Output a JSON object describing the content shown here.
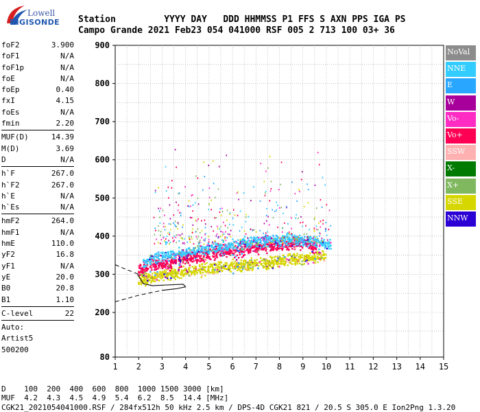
{
  "logo": {
    "line1": "Lowell",
    "line2": "DIGISONDE"
  },
  "header": {
    "labels": [
      "Station",
      "YYYY",
      "DAY",
      "DDD",
      "HHMMSS",
      "P1",
      "FFS",
      "S",
      "AXN",
      "PPS",
      "IGA",
      "PS"
    ],
    "values": [
      "Campo Grande",
      "2021",
      "Feb23",
      "054",
      "041000",
      "RSF",
      "005",
      "2",
      "713",
      "100",
      "03+",
      "36"
    ]
  },
  "params": [
    {
      "label": "foF2",
      "value": "3.900"
    },
    {
      "label": "foF1",
      "value": "N/A"
    },
    {
      "label": "foF1p",
      "value": "N/A"
    },
    {
      "label": "foE",
      "value": "N/A"
    },
    {
      "label": "foEp",
      "value": "0.40"
    },
    {
      "label": "fxI",
      "value": "4.15"
    },
    {
      "label": "foEs",
      "value": "N/A"
    },
    {
      "label": "fmin",
      "value": "2.20"
    },
    {
      "sep": true
    },
    {
      "label": "MUF(D)",
      "value": "14.39"
    },
    {
      "label": "M(D)",
      "value": "3.69"
    },
    {
      "label": "D",
      "value": "N/A"
    },
    {
      "sep": true
    },
    {
      "label": "h`F",
      "value": "267.0"
    },
    {
      "label": "h`F2",
      "value": "267.0"
    },
    {
      "label": "h`E",
      "value": "N/A"
    },
    {
      "label": "h`Es",
      "value": "N/A"
    },
    {
      "sep": true
    },
    {
      "label": "hmF2",
      "value": "264.0"
    },
    {
      "label": "hmF1",
      "value": "N/A"
    },
    {
      "label": "hmE",
      "value": "110.0"
    },
    {
      "label": "yF2",
      "value": "16.8"
    },
    {
      "label": "yF1",
      "value": "N/A"
    },
    {
      "label": "yE",
      "value": "20.0"
    },
    {
      "label": "B0",
      "value": "20.8"
    },
    {
      "label": "B1",
      "value": "1.10"
    },
    {
      "sep": true
    },
    {
      "label": "C-level",
      "value": "22"
    },
    {
      "sep": true
    },
    {
      "text": "Auto:"
    },
    {
      "text": "Artist5"
    },
    {
      "text": "500200"
    }
  ],
  "legend": [
    {
      "label": "NoVal",
      "color": "#8c8c8c"
    },
    {
      "label": "NNE",
      "color": "#33ccff"
    },
    {
      "label": "E",
      "color": "#29a6ff"
    },
    {
      "label": "W",
      "color": "#a8009a"
    },
    {
      "label": "Vo-",
      "color": "#ff2cc4"
    },
    {
      "label": "Vo+",
      "color": "#ff0054"
    },
    {
      "label": "SSW",
      "color": "#ffb0b0"
    },
    {
      "label": "X-",
      "color": "#007a00"
    },
    {
      "label": "X+",
      "color": "#80b860"
    },
    {
      "label": "SSE",
      "color": "#d6d600"
    },
    {
      "label": "NNW",
      "color": "#2a00d4"
    }
  ],
  "footer": {
    "d_label": "D",
    "d_values": [
      "100",
      "200",
      "400",
      "600",
      "800",
      "1000",
      "1500",
      "3000",
      "[km]"
    ],
    "muf_label": "MUF",
    "muf_values": [
      "4.2",
      "4.3",
      "4.5",
      "4.9",
      "5.4",
      "6.2",
      "8.5",
      "14.4",
      "[MHz]"
    ],
    "file_line": "CGK21_2021054041000.RSF / 284fx512h 50 kHz 2.5 km / DPS-4D CGK21 821 / 20.5 S 305.0 E Ion2Png 1.3.20"
  },
  "chart_data": {
    "type": "scatter",
    "title": "",
    "xlabel": "",
    "ylabel": "",
    "xlim": [
      1,
      15
    ],
    "ylim": [
      80,
      900
    ],
    "x_ticks": [
      1,
      2,
      3,
      4,
      5,
      6,
      7,
      8,
      9,
      10,
      11,
      12,
      13,
      14,
      15
    ],
    "y_ticks": [
      80,
      200,
      300,
      400,
      500,
      600,
      700,
      800,
      900
    ],
    "grid": true,
    "legend_position": "right",
    "series": [
      {
        "name": "NNE",
        "color": "#33ccff",
        "points": [
          [
            2.2,
            330
          ],
          [
            2.6,
            340
          ],
          [
            3.0,
            345
          ],
          [
            3.4,
            350
          ],
          [
            3.8,
            355
          ],
          [
            4.2,
            360
          ],
          [
            4.6,
            365
          ],
          [
            5.0,
            368
          ],
          [
            5.4,
            372
          ],
          [
            5.8,
            375
          ],
          [
            6.2,
            378
          ],
          [
            6.6,
            382
          ],
          [
            7.0,
            385
          ],
          [
            7.4,
            388
          ],
          [
            7.8,
            390
          ],
          [
            8.2,
            390
          ],
          [
            8.6,
            392
          ],
          [
            9.0,
            388
          ],
          [
            9.4,
            385
          ],
          [
            9.8,
            380
          ],
          [
            10.2,
            378
          ]
        ]
      },
      {
        "name": "Vo+",
        "color": "#ff0054",
        "points": [
          [
            2.0,
            310
          ],
          [
            2.4,
            320
          ],
          [
            2.8,
            325
          ],
          [
            3.2,
            330
          ],
          [
            3.6,
            335
          ],
          [
            4.0,
            340
          ],
          [
            4.4,
            345
          ],
          [
            4.8,
            350
          ],
          [
            5.2,
            355
          ],
          [
            5.6,
            360
          ],
          [
            6.0,
            362
          ],
          [
            6.4,
            365
          ],
          [
            6.8,
            368
          ],
          [
            7.2,
            372
          ],
          [
            7.6,
            375
          ],
          [
            8.0,
            378
          ],
          [
            8.4,
            380
          ],
          [
            8.8,
            382
          ],
          [
            9.2,
            378
          ],
          [
            9.6,
            372
          ]
        ]
      },
      {
        "name": "SSE",
        "color": "#d6d600",
        "points": [
          [
            2.0,
            285
          ],
          [
            2.4,
            290
          ],
          [
            2.8,
            295
          ],
          [
            3.2,
            298
          ],
          [
            3.6,
            302
          ],
          [
            4.0,
            305
          ],
          [
            4.4,
            308
          ],
          [
            4.8,
            312
          ],
          [
            5.2,
            315
          ],
          [
            5.6,
            318
          ],
          [
            6.0,
            320
          ],
          [
            6.4,
            322
          ],
          [
            6.8,
            325
          ],
          [
            7.2,
            328
          ],
          [
            7.6,
            330
          ],
          [
            8.0,
            335
          ],
          [
            8.4,
            338
          ],
          [
            8.8,
            340
          ],
          [
            9.2,
            342
          ],
          [
            9.6,
            345
          ],
          [
            10.0,
            350
          ]
        ]
      }
    ]
  }
}
